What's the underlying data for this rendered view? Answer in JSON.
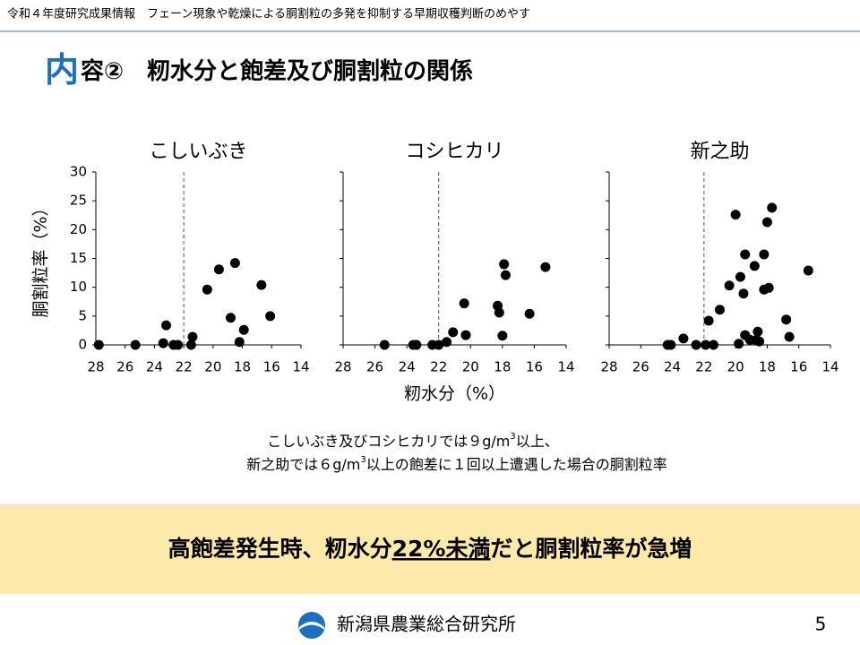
{
  "header": "令和４年度研究成果情報　フェーン現象や乾燥による胴割粒の多発を抑制する早期収穫判断のめやす",
  "title": {
    "first": "内",
    "rest": "容②　籾水分と飽差及び胴割粒の関係"
  },
  "chart_data": [
    {
      "type": "scatter",
      "title": "こしいぶき",
      "ylabel": "胴割粒率（%）",
      "color": "#000000",
      "xlim": [
        28,
        14
      ],
      "xticks": [
        28,
        26,
        24,
        22,
        20,
        18,
        16,
        14
      ],
      "ylim": [
        0,
        30
      ],
      "yticks": [
        0,
        5,
        10,
        15,
        20,
        25,
        30
      ],
      "vline": 22,
      "x": [
        27.8,
        25.3,
        23.4,
        23.2,
        22.7,
        22.4,
        21.5,
        21.4,
        20.4,
        19.6,
        18.8,
        18.5,
        18.2,
        17.9,
        16.7,
        16.1
      ],
      "values": [
        0,
        0,
        0.3,
        3.4,
        0,
        0,
        0,
        1.4,
        9.6,
        13.1,
        4.7,
        14.2,
        0.5,
        2.6,
        10.4,
        5.0
      ]
    },
    {
      "type": "scatter",
      "title": "コシヒカリ",
      "xlabel": "籾水分（%）",
      "color": "#000000",
      "xlim": [
        28,
        14
      ],
      "xticks": [
        28,
        26,
        24,
        22,
        20,
        18,
        16,
        14
      ],
      "ylim": [
        0,
        30
      ],
      "yticks": [
        0,
        5,
        10,
        15,
        20,
        25,
        30
      ],
      "vline": 22,
      "x": [
        25.4,
        23.6,
        23.4,
        22.4,
        22.0,
        21.5,
        21.1,
        20.4,
        20.3,
        18.3,
        18.2,
        18.0,
        17.9,
        17.8,
        16.3,
        15.3
      ],
      "values": [
        0,
        0,
        0,
        0,
        0,
        0.5,
        2.2,
        7.2,
        1.7,
        6.8,
        5.6,
        1.6,
        14.0,
        12.1,
        5.4,
        13.5
      ]
    },
    {
      "type": "scatter",
      "title": "新之助",
      "color": "#000000",
      "xlim": [
        28,
        14
      ],
      "xticks": [
        28,
        26,
        24,
        22,
        20,
        18,
        16,
        14
      ],
      "ylim": [
        0,
        30
      ],
      "yticks": [
        0,
        5,
        10,
        15,
        20,
        25,
        30
      ],
      "vline": 22,
      "x": [
        24.3,
        24.1,
        23.3,
        22.5,
        21.9,
        21.4,
        21.7,
        21.0,
        20.4,
        20.0,
        19.8,
        19.7,
        19.5,
        19.4,
        19.4,
        19.1,
        18.8,
        18.6,
        18.5,
        18.2,
        18.2,
        18.0,
        17.9,
        17.7,
        18.7,
        16.8,
        16.6,
        15.4
      ],
      "values": [
        0,
        0,
        1.1,
        0,
        0,
        0,
        4.2,
        6.1,
        10.3,
        22.6,
        0.2,
        11.8,
        8.9,
        15.7,
        1.7,
        0.9,
        13.7,
        2.3,
        0.6,
        9.6,
        15.7,
        21.3,
        9.9,
        23.8,
        0.8,
        4.4,
        1.4,
        12.9
      ]
    }
  ],
  "note": {
    "line1": [
      "こしいぶき及びコシヒカリでは９g/m",
      "3",
      "以上、"
    ],
    "line2": [
      "新之助では６g/m",
      "3",
      "以上の飽差に１回以上遭遇した場合の胴割粒率"
    ]
  },
  "conclusion": {
    "before": "高飽差発生時、籾水分",
    "emphasis": "22%未満",
    "after": "だと胴割粒率が急増"
  },
  "footer": {
    "org": "新潟県農業総合研究所",
    "page": "5"
  }
}
